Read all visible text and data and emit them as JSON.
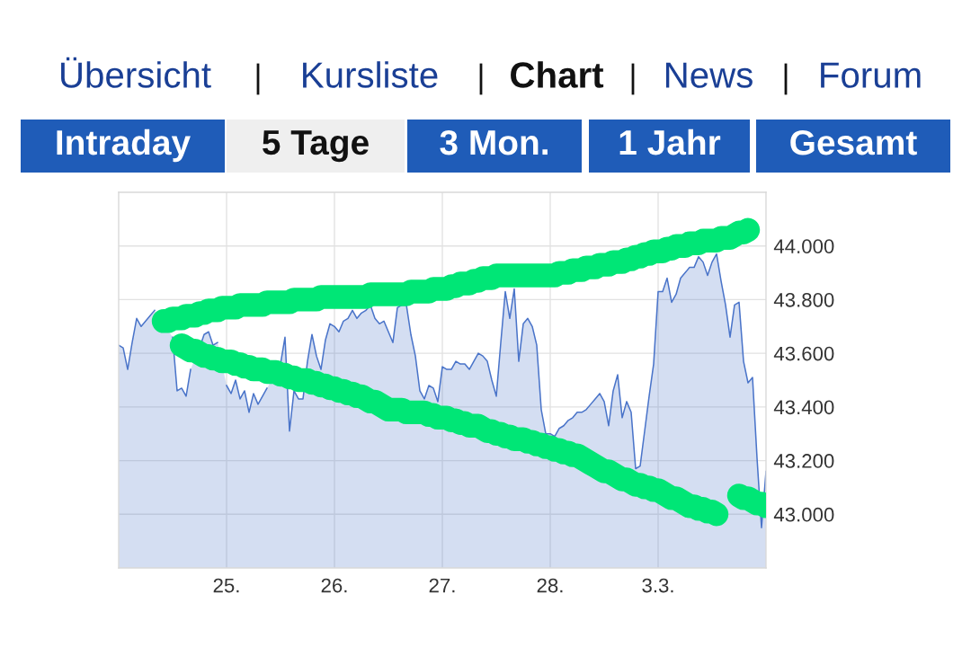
{
  "chart_data": {
    "type": "area",
    "annotations": [
      "Übersicht",
      "Kursliste",
      "Chart",
      "News",
      "Forum",
      "Intraday",
      "5 Tage",
      "3 Mon.",
      "1 Jahr",
      "Gesamt"
    ],
    "categories": [
      null,
      null,
      null,
      null,
      null,
      null,
      null,
      null,
      null,
      null,
      null,
      null,
      null,
      null,
      null,
      null,
      null,
      null,
      null,
      null,
      null,
      null,
      null,
      null,
      "25.",
      null,
      null,
      null,
      null,
      null,
      null,
      null,
      null,
      null,
      null,
      null,
      null,
      null,
      null,
      null,
      null,
      null,
      null,
      null,
      null,
      null,
      null,
      null,
      "26.",
      null,
      null,
      null,
      null,
      null,
      null,
      null,
      null,
      null,
      null,
      null,
      null,
      null,
      null,
      null,
      null,
      null,
      null,
      null,
      null,
      null,
      null,
      null,
      "27.",
      null,
      null,
      null,
      null,
      null,
      null,
      null,
      null,
      null,
      null,
      null,
      null,
      null,
      null,
      null,
      null,
      null,
      null,
      null,
      null,
      null,
      null,
      null,
      "28.",
      null,
      null,
      null,
      null,
      null,
      null,
      null,
      null,
      null,
      null,
      null,
      null,
      null,
      null,
      null,
      null,
      null,
      null,
      null,
      null,
      null,
      null,
      null,
      "3.3.",
      null,
      null,
      null,
      null,
      null,
      null,
      null,
      null,
      null,
      null,
      null,
      null,
      null,
      null,
      null,
      null,
      null,
      null,
      null,
      null,
      null,
      null,
      null,
      null
    ],
    "ylim": [
      42800,
      44200
    ],
    "yticks": [
      {
        "value": 43000,
        "label": "43.000"
      },
      {
        "value": 43200,
        "label": "43.200"
      },
      {
        "value": 43400,
        "label": "43.400"
      },
      {
        "value": 43600,
        "label": "43.600"
      },
      {
        "value": 43800,
        "label": "43.800"
      },
      {
        "value": 44000,
        "label": "44.000"
      }
    ],
    "grid": true,
    "series": [
      {
        "color": "#4a74c9",
        "values": [
          43630,
          43620,
          43540,
          43640,
          43730,
          43700,
          43720,
          43740,
          43760,
          null,
          null,
          null,
          43660,
          43460,
          43470,
          43440,
          43540,
          null,
          43620,
          43670,
          43680,
          43630,
          43640,
          null,
          43480,
          43450,
          43500,
          43430,
          43460,
          43380,
          43450,
          43410,
          43440,
          43470,
          null,
          null,
          43560,
          43660,
          43310,
          43460,
          43430,
          43430,
          43570,
          43670,
          43590,
          43540,
          43650,
          43710,
          43700,
          43680,
          43720,
          43730,
          43760,
          43730,
          43750,
          43760,
          43780,
          43730,
          43710,
          43720,
          43680,
          43640,
          43770,
          43780,
          43780,
          43670,
          43590,
          43460,
          43430,
          43480,
          43470,
          43420,
          43550,
          43540,
          43540,
          43570,
          43560,
          43560,
          43540,
          43570,
          43600,
          43590,
          43570,
          43500,
          43440,
          43640,
          43830,
          43730,
          43840,
          43570,
          43710,
          43730,
          43700,
          43630,
          43390,
          43300,
          43300,
          43290,
          43320,
          43330,
          43350,
          43360,
          43380,
          43380,
          43390,
          43410,
          43430,
          43450,
          43420,
          43330,
          43460,
          43520,
          43360,
          43420,
          43380,
          43170,
          43180,
          43310,
          43440,
          43560,
          43830,
          43830,
          43880,
          43790,
          43820,
          43880,
          43900,
          43920,
          43920,
          43960,
          43940,
          43890,
          43940,
          43970,
          43870,
          43780,
          43660,
          43780,
          43790,
          43570,
          43490,
          43510,
          43210,
          42950,
          43160
        ]
      },
      {
        "type": "line",
        "color": "#00e676",
        "values": [
          null,
          null,
          null,
          null,
          null,
          null,
          null,
          null,
          null,
          null,
          43720,
          43720,
          43730,
          43730,
          43730,
          43740,
          43740,
          43740,
          43750,
          43750,
          43760,
          43760,
          43760,
          43770,
          43770,
          43770,
          43770,
          43780,
          43780,
          43780,
          43780,
          43780,
          43780,
          43790,
          43790,
          43790,
          43790,
          43790,
          43790,
          43800,
          43800,
          43800,
          43800,
          43800,
          43800,
          43810,
          43810,
          43810,
          43810,
          43810,
          43810,
          43810,
          43810,
          43810,
          43810,
          43810,
          43820,
          43820,
          43820,
          43820,
          43820,
          43820,
          43820,
          43820,
          43820,
          43830,
          43830,
          43830,
          43830,
          43830,
          43840,
          43840,
          43840,
          43840,
          43850,
          43850,
          43860,
          43860,
          43860,
          43870,
          43870,
          43880,
          43880,
          43880,
          43890,
          43890,
          43890,
          43890,
          43890,
          43890,
          43890,
          43890,
          43890,
          43890,
          43890,
          43890,
          43890,
          43890,
          43900,
          43900,
          43900,
          43910,
          43910,
          43910,
          43920,
          43920,
          43920,
          43930,
          43930,
          43930,
          43940,
          43940,
          43940,
          43950,
          43950,
          43960,
          43960,
          43970,
          43970,
          43980,
          43980,
          43980,
          43990,
          43990,
          44000,
          44000,
          44000,
          44010,
          44010,
          44010,
          44020,
          44020,
          44020,
          44020,
          44030,
          44030,
          44030,
          44040,
          44050,
          44050,
          44060,
          null,
          null,
          null,
          null
        ]
      },
      {
        "type": "line",
        "color": "#00e676",
        "values": [
          null,
          null,
          null,
          null,
          null,
          null,
          null,
          null,
          null,
          null,
          null,
          null,
          null,
          null,
          43630,
          43620,
          43610,
          43610,
          43600,
          43590,
          43590,
          43580,
          43580,
          43570,
          43570,
          43570,
          43560,
          43560,
          43550,
          43550,
          43540,
          43540,
          43540,
          43530,
          43530,
          43530,
          43520,
          43520,
          43510,
          43510,
          43500,
          43500,
          43500,
          43490,
          43490,
          43480,
          43480,
          43470,
          43470,
          43460,
          43460,
          43450,
          43450,
          43440,
          43440,
          43430,
          43420,
          43420,
          43410,
          43400,
          43390,
          43390,
          43390,
          43390,
          43380,
          43380,
          43380,
          43380,
          43380,
          43370,
          43370,
          43360,
          43360,
          43360,
          43350,
          43350,
          43340,
          43340,
          43330,
          43330,
          43330,
          43320,
          43310,
          43310,
          43300,
          43300,
          43290,
          43290,
          43280,
          43280,
          43280,
          43270,
          43270,
          43260,
          43260,
          43250,
          43250,
          43240,
          43240,
          43230,
          43230,
          43220,
          43220,
          43210,
          43200,
          43190,
          43180,
          43170,
          43160,
          43160,
          43150,
          43140,
          43130,
          43130,
          43120,
          43110,
          43110,
          43100,
          43100,
          43090,
          43090,
          43080,
          43070,
          43060,
          43060,
          43050,
          43040,
          43030,
          43030,
          43020,
          43020,
          43010,
          43010,
          43000,
          null,
          null,
          null,
          null,
          null,
          null,
          null,
          null,
          null,
          null,
          null
        ]
      },
      {
        "type": "line",
        "color": "#00e676",
        "values": [
          null,
          null,
          null,
          null,
          null,
          null,
          null,
          null,
          null,
          null,
          null,
          null,
          null,
          null,
          null,
          null,
          null,
          null,
          null,
          null,
          null,
          null,
          null,
          null,
          null,
          null,
          null,
          null,
          null,
          null,
          null,
          null,
          null,
          null,
          null,
          null,
          null,
          null,
          null,
          null,
          null,
          null,
          null,
          null,
          null,
          null,
          null,
          null,
          null,
          null,
          null,
          null,
          null,
          null,
          null,
          null,
          null,
          null,
          null,
          null,
          null,
          null,
          null,
          null,
          null,
          null,
          null,
          null,
          null,
          null,
          null,
          null,
          null,
          null,
          null,
          null,
          null,
          null,
          null,
          null,
          null,
          null,
          null,
          null,
          null,
          null,
          null,
          null,
          null,
          null,
          null,
          null,
          null,
          null,
          null,
          null,
          null,
          null,
          null,
          null,
          null,
          null,
          null,
          null,
          null,
          null,
          null,
          null,
          null,
          null,
          null,
          null,
          null,
          null,
          null,
          null,
          null,
          null,
          null,
          null,
          null,
          null,
          null,
          null,
          null,
          null,
          null,
          null,
          null,
          null,
          null,
          null,
          null,
          null,
          null,
          null,
          null,
          null,
          43070,
          43060,
          43060,
          43050,
          43040,
          43040,
          43030
        ]
      }
    ]
  }
}
